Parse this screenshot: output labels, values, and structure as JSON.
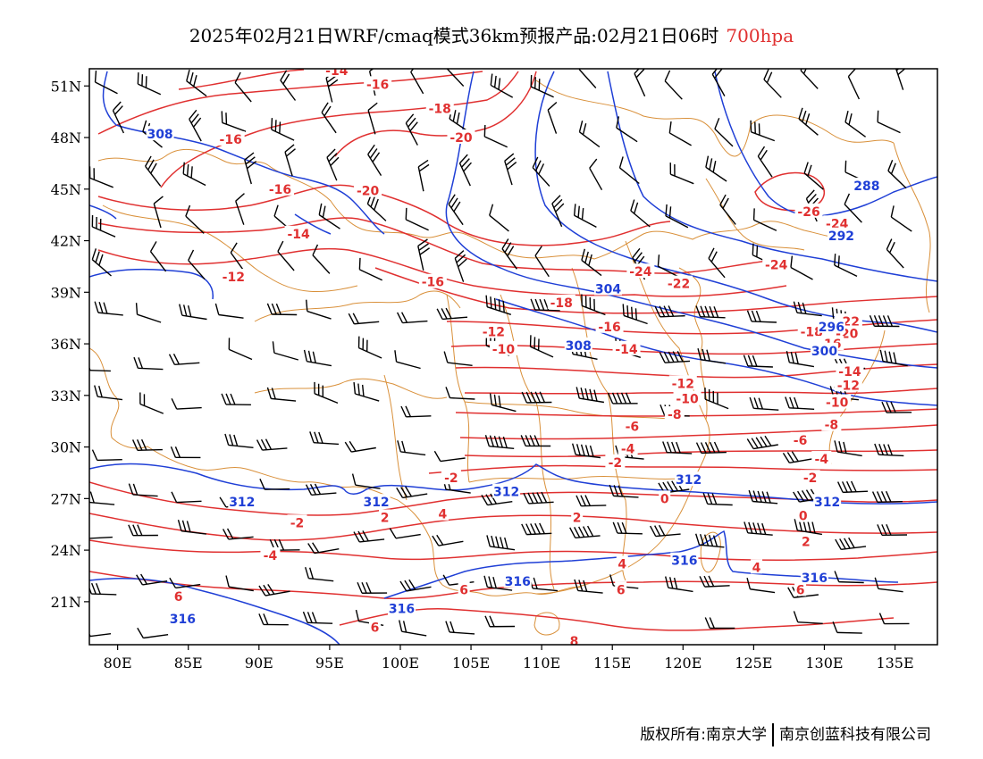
{
  "title": {
    "main": "2025年02月21日WRF/cmaq模式36km预报产品:02月21日06时",
    "level": "700hpa"
  },
  "colors": {
    "temperature": "#e03030",
    "geopotential": "#1f3fd6",
    "border": "#d9903a",
    "wind": "#000000",
    "frame": "#000000"
  },
  "axes": {
    "lon_range": [
      78,
      138
    ],
    "lat_range": [
      18.5,
      52
    ],
    "lon_ticks": [
      "80E",
      "85E",
      "90E",
      "95E",
      "100E",
      "105E",
      "110E",
      "115E",
      "120E",
      "125E",
      "130E",
      "135E"
    ],
    "lat_ticks": [
      "21N",
      "24N",
      "27N",
      "30N",
      "33N",
      "36N",
      "39N",
      "42N",
      "45N",
      "48N",
      "51N"
    ]
  },
  "temperature_labels": [
    {
      "text": "-14",
      "lon": 95.5,
      "lat": 51.9
    },
    {
      "text": "-16",
      "lon": 98.4,
      "lat": 51.1
    },
    {
      "text": "-18",
      "lon": 102.8,
      "lat": 49.7
    },
    {
      "text": "-20",
      "lon": 104.3,
      "lat": 48.0
    },
    {
      "text": "-16",
      "lon": 88.0,
      "lat": 47.9
    },
    {
      "text": "-16",
      "lon": 91.5,
      "lat": 45.0
    },
    {
      "text": "-20",
      "lon": 97.7,
      "lat": 44.9
    },
    {
      "text": "-14",
      "lon": 92.8,
      "lat": 42.4
    },
    {
      "text": "-12",
      "lon": 88.2,
      "lat": 39.9
    },
    {
      "text": "-16",
      "lon": 102.3,
      "lat": 39.6
    },
    {
      "text": "-24",
      "lon": 117.0,
      "lat": 40.2
    },
    {
      "text": "-22",
      "lon": 119.7,
      "lat": 39.5
    },
    {
      "text": "-18",
      "lon": 111.4,
      "lat": 38.4
    },
    {
      "text": "-16",
      "lon": 114.8,
      "lat": 37.0
    },
    {
      "text": "-12",
      "lon": 106.6,
      "lat": 36.7
    },
    {
      "text": "-10",
      "lon": 107.3,
      "lat": 35.7
    },
    {
      "text": "-14",
      "lon": 116.0,
      "lat": 35.7
    },
    {
      "text": "-12",
      "lon": 120.0,
      "lat": 33.7
    },
    {
      "text": "-10",
      "lon": 120.3,
      "lat": 32.8
    },
    {
      "text": "-8",
      "lon": 119.4,
      "lat": 31.9
    },
    {
      "text": "-6",
      "lon": 116.4,
      "lat": 31.2
    },
    {
      "text": "-4",
      "lon": 116.1,
      "lat": 29.9
    },
    {
      "text": "-2",
      "lon": 115.2,
      "lat": 29.1
    },
    {
      "text": "-2",
      "lon": 103.6,
      "lat": 28.2
    },
    {
      "text": "0",
      "lon": 118.7,
      "lat": 27.0
    },
    {
      "text": "2",
      "lon": 112.5,
      "lat": 25.9
    },
    {
      "text": "4",
      "lon": 103.0,
      "lat": 26.1
    },
    {
      "text": "2",
      "lon": 98.9,
      "lat": 25.9
    },
    {
      "text": "-2",
      "lon": 92.7,
      "lat": 25.6
    },
    {
      "text": "-4",
      "lon": 90.8,
      "lat": 23.7
    },
    {
      "text": "4",
      "lon": 115.7,
      "lat": 23.2
    },
    {
      "text": "6",
      "lon": 104.5,
      "lat": 21.7
    },
    {
      "text": "6",
      "lon": 115.6,
      "lat": 21.7
    },
    {
      "text": "6",
      "lon": 84.3,
      "lat": 21.3
    },
    {
      "text": "6",
      "lon": 98.2,
      "lat": 19.5
    },
    {
      "text": "8",
      "lon": 112.3,
      "lat": 18.7
    },
    {
      "text": "-26",
      "lon": 128.9,
      "lat": 43.7
    },
    {
      "text": "-24",
      "lon": 130.9,
      "lat": 43.0
    },
    {
      "text": "-24",
      "lon": 126.6,
      "lat": 40.6
    },
    {
      "text": "-22",
      "lon": 131.7,
      "lat": 37.3
    },
    {
      "text": "-20",
      "lon": 131.6,
      "lat": 36.6
    },
    {
      "text": "-18",
      "lon": 129.1,
      "lat": 36.7
    },
    {
      "text": "-16",
      "lon": 130.4,
      "lat": 36.0
    },
    {
      "text": "-14",
      "lon": 131.8,
      "lat": 34.4
    },
    {
      "text": "-12",
      "lon": 131.7,
      "lat": 33.6
    },
    {
      "text": "-10",
      "lon": 130.9,
      "lat": 32.6
    },
    {
      "text": "-8",
      "lon": 130.5,
      "lat": 31.3
    },
    {
      "text": "-6",
      "lon": 128.3,
      "lat": 30.4
    },
    {
      "text": "-4",
      "lon": 129.8,
      "lat": 29.3
    },
    {
      "text": "-2",
      "lon": 129.0,
      "lat": 28.2
    },
    {
      "text": "0",
      "lon": 128.5,
      "lat": 26.0
    },
    {
      "text": "2",
      "lon": 128.7,
      "lat": 24.5
    },
    {
      "text": "4",
      "lon": 125.2,
      "lat": 23.0
    },
    {
      "text": "6",
      "lon": 128.3,
      "lat": 21.7
    }
  ],
  "geopotential_labels": [
    {
      "text": "308",
      "lon": 83.0,
      "lat": 48.2
    },
    {
      "text": "288",
      "lon": 133.0,
      "lat": 45.2
    },
    {
      "text": "292",
      "lon": 131.2,
      "lat": 42.3
    },
    {
      "text": "304",
      "lon": 114.7,
      "lat": 39.2
    },
    {
      "text": "308",
      "lon": 112.6,
      "lat": 35.9
    },
    {
      "text": "296",
      "lon": 130.5,
      "lat": 37.0
    },
    {
      "text": "300",
      "lon": 130.0,
      "lat": 35.6
    },
    {
      "text": "312",
      "lon": 120.4,
      "lat": 28.1
    },
    {
      "text": "312",
      "lon": 107.5,
      "lat": 27.4
    },
    {
      "text": "312",
      "lon": 98.3,
      "lat": 26.8
    },
    {
      "text": "312",
      "lon": 88.8,
      "lat": 26.8
    },
    {
      "text": "312",
      "lon": 130.2,
      "lat": 26.8
    },
    {
      "text": "316",
      "lon": 120.1,
      "lat": 23.4
    },
    {
      "text": "316",
      "lon": 108.3,
      "lat": 22.2
    },
    {
      "text": "316",
      "lon": 129.3,
      "lat": 22.4
    },
    {
      "text": "316",
      "lon": 100.1,
      "lat": 20.6
    },
    {
      "text": "316",
      "lon": 84.6,
      "lat": 20.0
    }
  ],
  "footer": {
    "left": "版权所有:南京大学",
    "right": "南京创蓝科技有限公司"
  }
}
